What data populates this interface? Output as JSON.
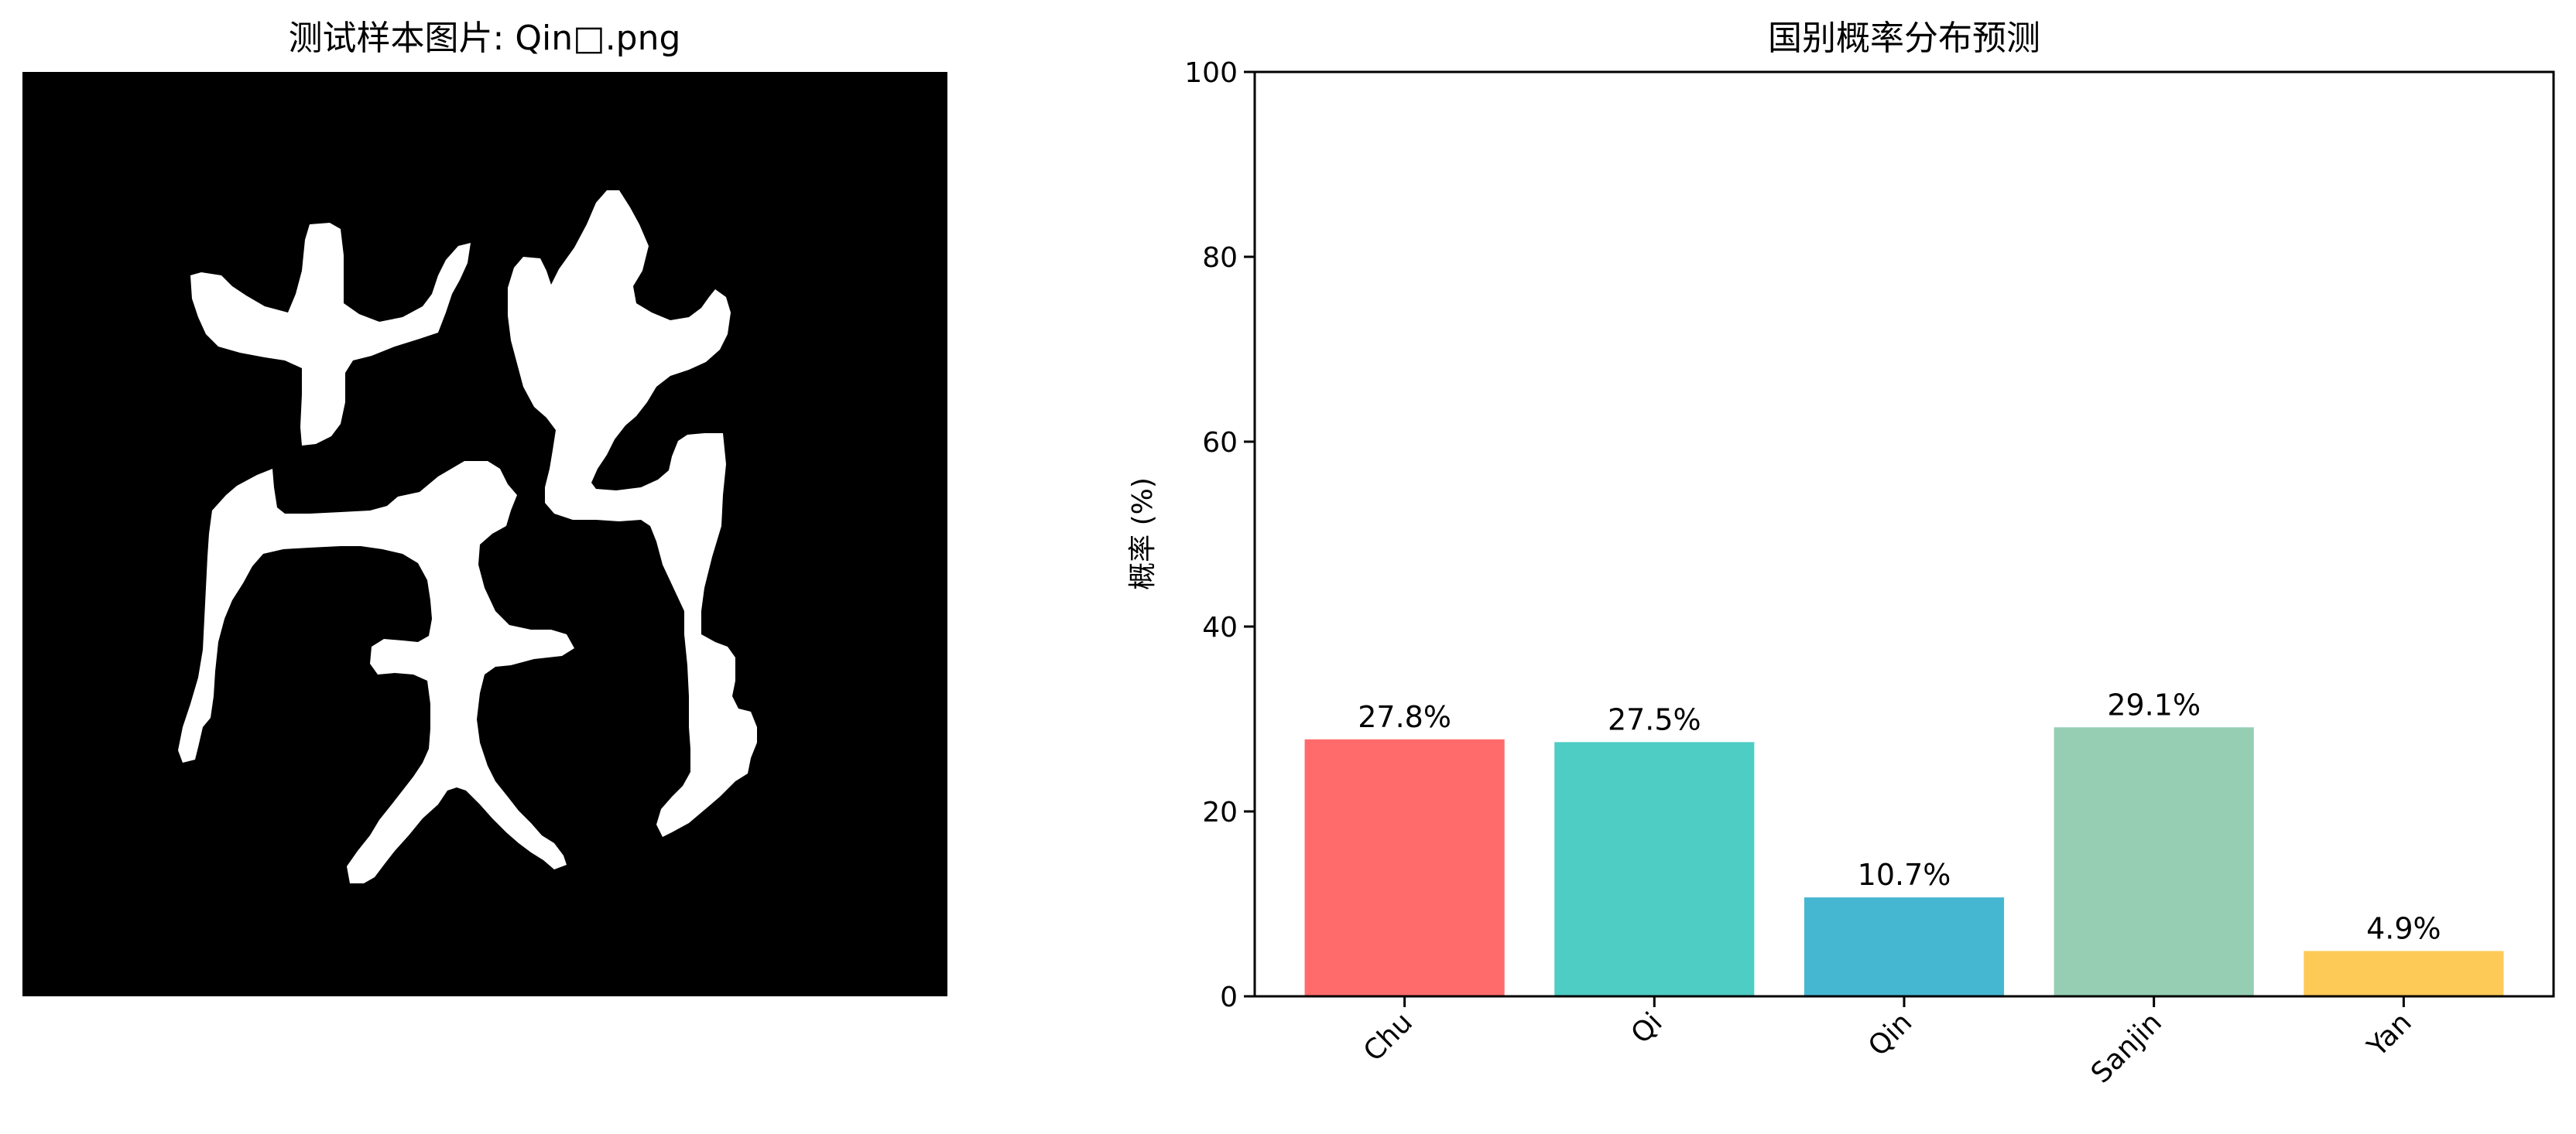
{
  "left_panel": {
    "title": "测试样本图片: Qin□.png",
    "image_kind": "binary white-on-black bronze-script character glyph",
    "background_color": "#000000",
    "glyph_color": "#ffffff"
  },
  "chart_data": {
    "type": "bar",
    "title": "国别概率分布预测",
    "xlabel": "",
    "ylabel": "概率 (%)",
    "categories": [
      "Chu",
      "Qi",
      "Qin",
      "Sanjin",
      "Yan"
    ],
    "values": [
      27.8,
      27.5,
      10.7,
      29.1,
      4.9
    ],
    "value_labels": [
      "27.8%",
      "27.5%",
      "10.7%",
      "29.1%",
      "4.9%"
    ],
    "colors": [
      "#ff6b6b",
      "#4ecdc4",
      "#45b7d1",
      "#96ceb4",
      "#feca57"
    ],
    "ylim": [
      0,
      100
    ],
    "yticks": [
      0,
      20,
      40,
      60,
      80,
      100
    ],
    "grid": false,
    "legend": "none",
    "tick_label_rotation": 45
  }
}
